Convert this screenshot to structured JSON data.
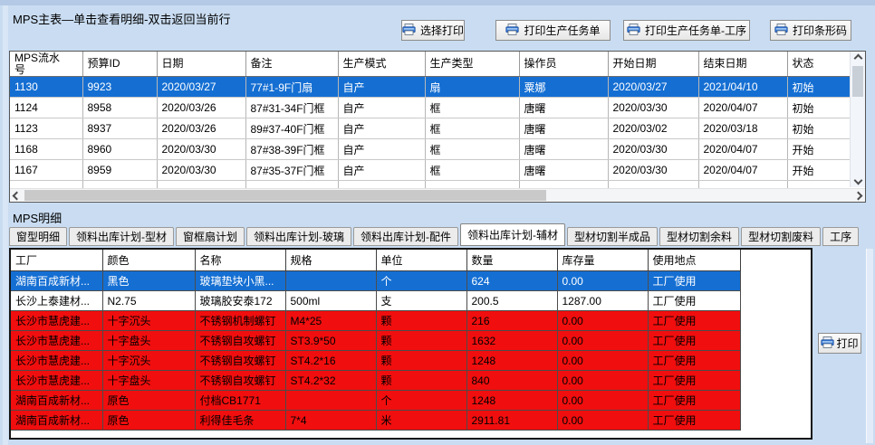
{
  "colors": {
    "background": "#c9dcf1",
    "selection_blue": "#156fd3",
    "alert_red": "#f10e0e",
    "selected_text": "#ffffff"
  },
  "master": {
    "title": "MPS主表—单击查看明细-双击返回当前行",
    "buttons": [
      "选择打印",
      "打印生产任务单",
      "打印生产任务单-工序",
      "打印条形码"
    ],
    "columns": [
      "MPS流水\n号",
      "预算ID",
      "日期",
      "备注",
      "生产模式",
      "生产类型",
      "操作员",
      "开始日期",
      "结束日期",
      "状态"
    ],
    "rows": [
      {
        "state": "selected",
        "cells": [
          "1130",
          "9923",
          "2020/03/27",
          "77#1-9F门扇",
          "自产",
          "扇",
          "粟娜",
          "2020/03/27",
          "2021/04/10",
          "初始"
        ]
      },
      {
        "state": "normal",
        "cells": [
          "1124",
          "8958",
          "2020/03/26",
          "87#31-34F门框",
          "自产",
          "框",
          "唐曙",
          "2020/03/30",
          "2020/04/07",
          "初始"
        ]
      },
      {
        "state": "normal",
        "cells": [
          "1123",
          "8937",
          "2020/03/26",
          "89#37-40F门框",
          "自产",
          "框",
          "唐曙",
          "2020/03/02",
          "2020/03/18",
          "初始"
        ]
      },
      {
        "state": "normal",
        "cells": [
          "1168",
          "8960",
          "2020/03/30",
          "87#38-39F门框",
          "自产",
          "框",
          "唐曙",
          "2020/03/30",
          "2020/04/07",
          "开始"
        ]
      },
      {
        "state": "normal",
        "cells": [
          "1167",
          "8959",
          "2020/03/30",
          "87#35-37F门框",
          "自产",
          "框",
          "唐曙",
          "2020/03/30",
          "2020/04/07",
          "开始"
        ]
      }
    ]
  },
  "detail": {
    "label": "MPS明细",
    "tabs": [
      "窗型明细",
      "领料出库计划-型材",
      "窗框扇计划",
      "领料出库计划-玻璃",
      "领料出库计划-配件",
      "领料出库计划-辅材",
      "型材切割半成品",
      "型材切割余料",
      "型材切割废料",
      "工序"
    ],
    "active_tab": "领料出库计划-辅材",
    "columns": [
      "工厂",
      "颜色",
      "名称",
      "规格",
      "单位",
      "数量",
      "库存量",
      "使用地点"
    ],
    "rows": [
      {
        "state": "selected",
        "cells": [
          "湖南百成新材...",
          "黑色",
          "玻璃垫块小黑...",
          "",
          "个",
          "624",
          "0.00",
          "工厂使用"
        ]
      },
      {
        "state": "normal",
        "cells": [
          "长沙上泰建材...",
          "N2.75",
          "玻璃胶安泰172",
          "500ml",
          "支",
          "200.5",
          "1287.00",
          "工厂使用"
        ]
      },
      {
        "state": "alert",
        "cells": [
          "长沙市慧虎建...",
          "十字沉头",
          "不锈钢机制螺钉",
          "M4*25",
          "颗",
          "216",
          "0.00",
          "工厂使用"
        ]
      },
      {
        "state": "alert",
        "cells": [
          "长沙市慧虎建...",
          "十字盘头",
          "不锈钢自攻螺钉",
          "ST3.9*50",
          "颗",
          "1632",
          "0.00",
          "工厂使用"
        ]
      },
      {
        "state": "alert",
        "cells": [
          "长沙市慧虎建...",
          "十字沉头",
          "不锈钢自攻螺钉",
          "ST4.2*16",
          "颗",
          "1248",
          "0.00",
          "工厂使用"
        ]
      },
      {
        "state": "alert",
        "cells": [
          "长沙市慧虎建...",
          "十字盘头",
          "不锈钢自攻螺钉",
          "ST4.2*32",
          "颗",
          "840",
          "0.00",
          "工厂使用"
        ]
      },
      {
        "state": "alert",
        "cells": [
          "湖南百成新材...",
          "原色",
          "付档CB1771",
          "",
          "个",
          "1248",
          "0.00",
          "工厂使用"
        ]
      },
      {
        "state": "alert",
        "cells": [
          "湖南百成新材...",
          "原色",
          "利得佳毛条",
          "7*4",
          "米",
          "2911.81",
          "0.00",
          "工厂使用"
        ]
      }
    ],
    "print_label": "打印"
  }
}
